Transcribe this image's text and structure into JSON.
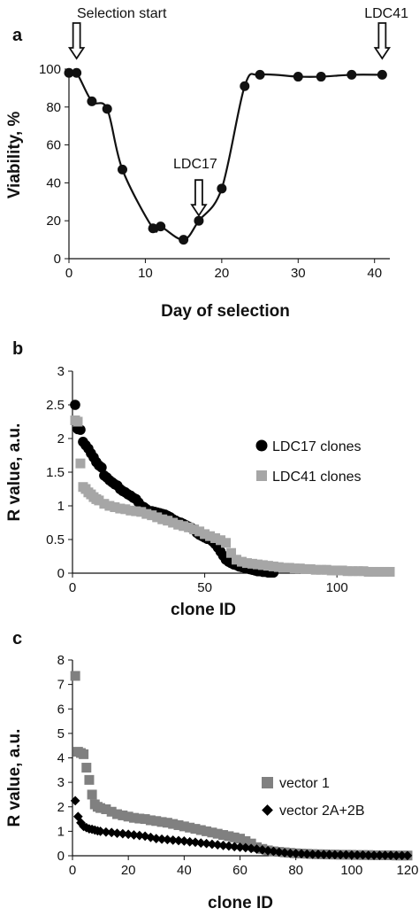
{
  "chart_data": [
    {
      "panel": "a",
      "type": "line",
      "xlabel": "Day of selection",
      "ylabel": "Viability, %",
      "xlim": [
        0,
        42
      ],
      "ylim": [
        0,
        100
      ],
      "x_ticks": [
        "0",
        "10",
        "20",
        "30",
        "40"
      ],
      "y_ticks": [
        "0",
        "20",
        "40",
        "60",
        "80",
        "100"
      ],
      "series": [
        {
          "x": [
            0,
            1,
            3,
            5,
            7,
            11,
            12,
            15,
            17,
            20,
            23,
            25,
            30,
            33,
            37,
            41
          ],
          "y": [
            98,
            98,
            83,
            79,
            47,
            16,
            17,
            10,
            20,
            37,
            91,
            97,
            96,
            96,
            97,
            97
          ]
        }
      ],
      "annotations": [
        {
          "text": "Selection start",
          "x": 1
        },
        {
          "text": "LDC17",
          "x": 17
        },
        {
          "text": "LDC41",
          "x": 41
        }
      ],
      "color": "#111111"
    },
    {
      "panel": "b",
      "type": "scatter",
      "xlabel": "clone ID",
      "ylabel": "R value, a.u.",
      "xlim": [
        0,
        120
      ],
      "ylim": [
        0,
        3
      ],
      "x_ticks": [
        "0",
        "50",
        "100"
      ],
      "y_ticks": [
        "0",
        "0.5",
        "1",
        "1.5",
        "2",
        "2.5",
        "3"
      ],
      "legend_position": "right",
      "series": [
        {
          "name": "LDC17 clones",
          "marker": "circle",
          "color": "#000000",
          "x": [
            1,
            2,
            3,
            4,
            5,
            6,
            7,
            8,
            9,
            10,
            11,
            12,
            13,
            14,
            15,
            16,
            17,
            18,
            19,
            20,
            21,
            22,
            23,
            24,
            25,
            26,
            27,
            28,
            29,
            30,
            31,
            32,
            33,
            34,
            35,
            36,
            37,
            38,
            39,
            40,
            41,
            42,
            43,
            44,
            45,
            46,
            47,
            48,
            49,
            50,
            51,
            52,
            53,
            54,
            55,
            56,
            57,
            58,
            59,
            60,
            61,
            62,
            63,
            64,
            65,
            66,
            67,
            68,
            69,
            70,
            71,
            72,
            73,
            74,
            75,
            76
          ],
          "y": [
            2.5,
            2.14,
            2.13,
            1.95,
            1.9,
            1.85,
            1.78,
            1.72,
            1.65,
            1.6,
            1.57,
            1.45,
            1.42,
            1.38,
            1.35,
            1.32,
            1.3,
            1.25,
            1.22,
            1.2,
            1.17,
            1.15,
            1.12,
            1.1,
            1.05,
            1.0,
            0.98,
            0.95,
            0.92,
            0.92,
            0.91,
            0.9,
            0.89,
            0.88,
            0.87,
            0.85,
            0.83,
            0.8,
            0.78,
            0.76,
            0.75,
            0.73,
            0.71,
            0.69,
            0.67,
            0.65,
            0.6,
            0.57,
            0.55,
            0.53,
            0.51,
            0.5,
            0.47,
            0.43,
            0.38,
            0.32,
            0.26,
            0.2,
            0.17,
            0.15,
            0.13,
            0.12,
            0.1,
            0.09,
            0.08,
            0.07,
            0.06,
            0.05,
            0.04,
            0.03,
            0.03,
            0.02,
            0.02,
            0.01,
            0.01,
            0.01
          ]
        },
        {
          "name": "LDC41 clones",
          "marker": "square",
          "color": "#a6a6a6",
          "x": [
            1,
            2,
            3,
            4,
            5,
            6,
            7,
            8,
            9,
            10,
            12,
            14,
            16,
            18,
            20,
            22,
            24,
            26,
            28,
            30,
            32,
            34,
            36,
            38,
            40,
            42,
            44,
            46,
            48,
            50,
            52,
            54,
            56,
            58,
            60,
            62,
            64,
            66,
            68,
            70,
            72,
            74,
            76,
            78,
            80,
            82,
            84,
            86,
            88,
            90,
            92,
            94,
            96,
            98,
            100,
            102,
            104,
            106,
            108,
            110,
            112,
            114,
            116,
            118,
            120
          ],
          "y": [
            2.27,
            2.25,
            1.63,
            1.28,
            1.25,
            1.2,
            1.17,
            1.13,
            1.1,
            1.08,
            1.03,
            1.0,
            0.98,
            0.96,
            0.95,
            0.93,
            0.92,
            0.91,
            0.88,
            0.86,
            0.83,
            0.8,
            0.78,
            0.75,
            0.72,
            0.7,
            0.68,
            0.65,
            0.62,
            0.58,
            0.55,
            0.52,
            0.49,
            0.45,
            0.3,
            0.2,
            0.17,
            0.15,
            0.14,
            0.13,
            0.12,
            0.11,
            0.1,
            0.09,
            0.08,
            0.08,
            0.07,
            0.07,
            0.06,
            0.06,
            0.05,
            0.05,
            0.05,
            0.04,
            0.04,
            0.04,
            0.03,
            0.03,
            0.03,
            0.03,
            0.02,
            0.02,
            0.02,
            0.02,
            0.02
          ]
        }
      ]
    },
    {
      "panel": "c",
      "type": "scatter",
      "xlabel": "clone ID",
      "ylabel": "R value, a.u.",
      "xlim": [
        0,
        120
      ],
      "ylim": [
        0,
        8
      ],
      "x_ticks": [
        "0",
        "20",
        "40",
        "60",
        "80",
        "100",
        "120"
      ],
      "y_ticks": [
        "0",
        "1",
        "2",
        "3",
        "4",
        "5",
        "6",
        "7",
        "8"
      ],
      "legend_position": "right",
      "series": [
        {
          "name": "vector 1",
          "marker": "square",
          "color": "#808080",
          "x": [
            1,
            2,
            3,
            4,
            5,
            6,
            7,
            8,
            9,
            10,
            12,
            14,
            16,
            18,
            20,
            22,
            24,
            26,
            28,
            30,
            32,
            34,
            36,
            38,
            40,
            42,
            44,
            46,
            48,
            50,
            52,
            54,
            56,
            58,
            60,
            62,
            64,
            66,
            68,
            70,
            72,
            74,
            76,
            78,
            80,
            82,
            84,
            86,
            88,
            90,
            92,
            94,
            96,
            98,
            100,
            102,
            104,
            106,
            108,
            110,
            112,
            114,
            116,
            118,
            120
          ],
          "y": [
            7.35,
            4.25,
            4.2,
            4.15,
            3.6,
            3.1,
            2.5,
            2.1,
            2.0,
            1.95,
            1.9,
            1.8,
            1.7,
            1.65,
            1.6,
            1.55,
            1.52,
            1.5,
            1.45,
            1.42,
            1.38,
            1.35,
            1.3,
            1.25,
            1.2,
            1.15,
            1.1,
            1.05,
            1.0,
            0.95,
            0.9,
            0.85,
            0.8,
            0.75,
            0.7,
            0.6,
            0.5,
            0.35,
            0.28,
            0.22,
            0.18,
            0.16,
            0.14,
            0.12,
            0.1,
            0.09,
            0.08,
            0.07,
            0.06,
            0.06,
            0.05,
            0.05,
            0.04,
            0.04,
            0.04,
            0.03,
            0.03,
            0.03,
            0.02,
            0.02,
            0.02,
            0.02,
            0.01,
            0.01,
            0.01
          ]
        },
        {
          "name": "vector 2A+2B",
          "marker": "diamond",
          "color": "#000000",
          "x": [
            1,
            2,
            3,
            4,
            5,
            6,
            7,
            8,
            9,
            10,
            12,
            14,
            16,
            18,
            20,
            22,
            24,
            26,
            28,
            30,
            32,
            34,
            36,
            38,
            40,
            42,
            44,
            46,
            48,
            50,
            52,
            54,
            56,
            58,
            60,
            62,
            64,
            66,
            68,
            70,
            72,
            74,
            76,
            78,
            80,
            82,
            84,
            86,
            88,
            90,
            92,
            94,
            96,
            98,
            100,
            102,
            104,
            106,
            108,
            110,
            112,
            114,
            116,
            118,
            120
          ],
          "y": [
            2.25,
            1.6,
            1.35,
            1.2,
            1.15,
            1.1,
            1.08,
            1.05,
            1.02,
            1.0,
            0.97,
            0.95,
            0.92,
            0.9,
            0.88,
            0.85,
            0.83,
            0.8,
            0.75,
            0.7,
            0.68,
            0.66,
            0.64,
            0.62,
            0.6,
            0.57,
            0.55,
            0.52,
            0.5,
            0.47,
            0.45,
            0.42,
            0.4,
            0.37,
            0.35,
            0.33,
            0.3,
            0.27,
            0.24,
            0.21,
            0.18,
            0.15,
            0.12,
            0.1,
            0.09,
            0.08,
            0.07,
            0.06,
            0.06,
            0.05,
            0.05,
            0.04,
            0.04,
            0.04,
            0.03,
            0.03,
            0.03,
            0.02,
            0.02,
            0.02,
            0.02,
            0.02,
            0.01,
            0.01,
            0.01
          ]
        }
      ]
    }
  ]
}
